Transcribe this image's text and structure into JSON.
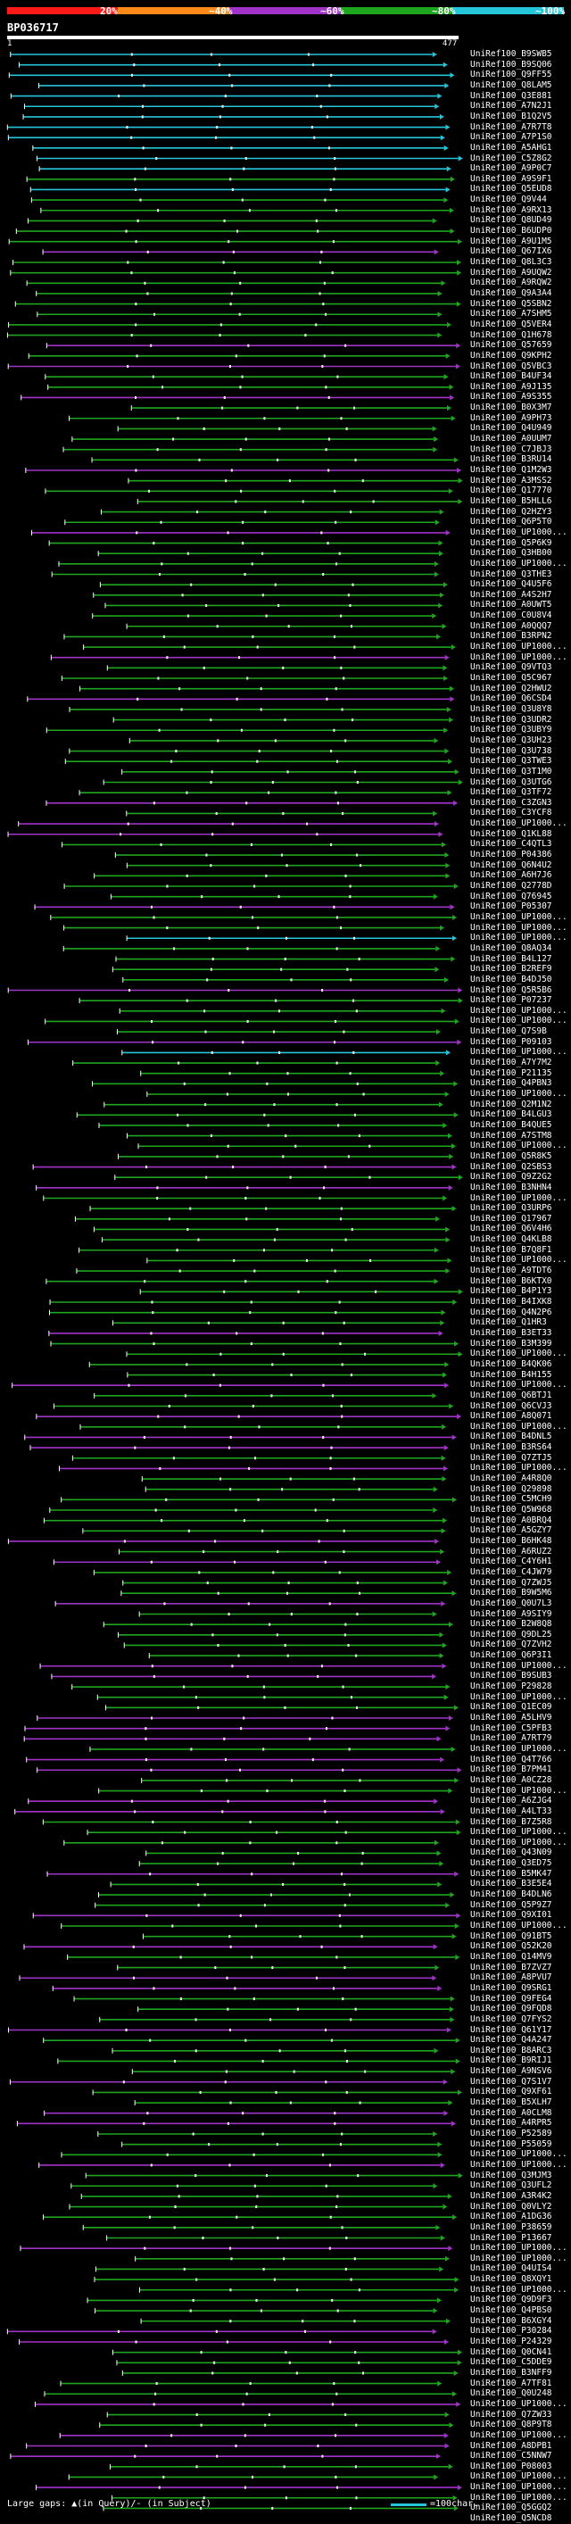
{
  "identity_scale": {
    "labels": [
      "20%",
      "~40%",
      "~60%",
      "~80%",
      "~100%"
    ],
    "colors": [
      "#ff1a1a",
      "#ff8a1a",
      "#a233c8",
      "#1fa61f",
      "#26c6da"
    ]
  },
  "query": {
    "id": "BP036717",
    "start": "1",
    "end": "477"
  },
  "legend": {
    "gaps_label": "Large gaps: ▲(in Query)/- (in Subject)",
    "scale_label": "=100char."
  },
  "hits": [
    "UniRef100_B9SWB5",
    "UniRef100_B9SQ06",
    "UniRef100_Q9FF55",
    "UniRef100_Q8LAM5",
    "UniRef100_Q3E881",
    "UniRef100_A7N2J1",
    "UniRef100_B1Q2V5",
    "UniRef100_A7R7T8",
    "UniRef100_A7P1S0",
    "UniRef100_A5AHG1",
    "UniRef100_C5Z8G2",
    "UniRef100_A9P0C7",
    "UniRef100_A9S9F1",
    "UniRef100_Q5EUD8",
    "UniRef100_Q9V44",
    "UniRef100_A9RX13",
    "UniRef100_Q8UD49",
    "UniRef100_B6UDP0",
    "UniRef100_A9U1M5",
    "UniRef100_Q67IX6",
    "UniRef100_Q8L3C3",
    "UniRef100_A9UQW2",
    "UniRef100_A9RQW2",
    "UniRef100_Q9A3A4",
    "UniRef100_Q5SBN2",
    "UniRef100_A7SHM5",
    "UniRef100_Q5VER4",
    "UniRef100_Q1H678",
    "UniRef100_Q57659",
    "UniRef100_Q9KPH2",
    "UniRef100_Q5VBC3",
    "UniRef100_B4UF34",
    "UniRef100_A9J135",
    "UniRef100_A9S355",
    "UniRef100_B0X3M7",
    "UniRef100_A9PH73",
    "UniRef100_Q4U949",
    "UniRef100_A0UUM7",
    "UniRef100_C7JBJ3",
    "UniRef100_B3RU14",
    "UniRef100_Q1M2W3",
    "UniRef100_A3MSS2",
    "UniRef100_Q17770",
    "UniRef100_B5HLL6",
    "UniRef100_Q2HZY3",
    "UniRef100_Q6P5T0",
    "UniRef100_UP1000...",
    "UniRef100_Q5P6K9",
    "UniRef100_Q3HB00",
    "UniRef100_UP1000...",
    "UniRef100_Q3THE3",
    "UniRef100_Q4U5F6",
    "UniRef100_A4S2H7",
    "UniRef100_A0UWT5",
    "UniRef100_C0U8V4",
    "UniRef100_A0QQQ7",
    "UniRef100_B3RPN2",
    "UniRef100_UP1000...",
    "UniRef100_UP1000...",
    "UniRef100_Q9VTQ3",
    "UniRef100_Q5C967",
    "UniRef100_Q2HWU2",
    "UniRef100_Q6CSD4",
    "UniRef100_Q3U8Y8",
    "UniRef100_Q3UDR2",
    "UniRef100_Q3UBY9",
    "UniRef100_Q3UH23",
    "UniRef100_Q3U738",
    "UniRef100_Q3TWE3",
    "UniRef100_Q3T1M0",
    "UniRef100_Q3UTG6",
    "UniRef100_Q3TF72",
    "UniRef100_C3ZGN3",
    "UniRef100_C3YCF8",
    "UniRef100_UP1000...",
    "UniRef100_Q1KL88",
    "UniRef100_C4QTL3",
    "UniRef100_P04386",
    "UniRef100_Q6N4U2",
    "UniRef100_A6H7J6",
    "UniRef100_Q2778D",
    "UniRef100_Q76945",
    "UniRef100_P05307",
    "UniRef100_UP1000...",
    "UniRef100_UP1000...",
    "UniRef100_UP1000...",
    "UniRef100_Q8AQ34",
    "UniRef100_B4L127",
    "UniRef100_B2REF9",
    "UniRef100_B4DJ50",
    "UniRef100_Q5R5B6",
    "UniRef100_P07237",
    "UniRef100_UP1000...",
    "UniRef100_UP1000...",
    "UniRef100_Q7S9B",
    "UniRef100_P09103",
    "UniRef100_UP1000...",
    "UniRef100_A7Y7M2",
    "UniRef100_P21135",
    "UniRef100_Q4PBN3",
    "UniRef100_UP1000...",
    "UniRef100_Q2M1N2",
    "UniRef100_B4LGU3",
    "UniRef100_B4QUE5",
    "UniRef100_A7STM8",
    "UniRef100_UP1000...",
    "UniRef100_Q5R8K5",
    "UniRef100_Q2SBS3",
    "UniRef100_Q9Z2G2",
    "UniRef100_B3NHN4",
    "UniRef100_UP1000...",
    "UniRef100_Q3URP6",
    "UniRef100_Q17967",
    "UniRef100_Q6V4H6",
    "UniRef100_Q4KLB8",
    "UniRef100_B7Q8F1",
    "UniRef100_UP1000...",
    "UniRef100_A9TDT6",
    "UniRef100_B6KTX0",
    "UniRef100_B4P1Y3",
    "UniRef100_B4IXK8",
    "UniRef100_Q4N2P6",
    "UniRef100_Q1HR3",
    "UniRef100_B3ET33",
    "UniRef100_B3M399",
    "UniRef100_UP1000...",
    "UniRef100_B4QK06",
    "UniRef100_B4H155",
    "UniRef100_UP1000...",
    "UniRef100_Q6BTJ1",
    "UniRef100_Q6CVJ3",
    "UniRef100_A8Q071",
    "UniRef100_UP1000...",
    "UniRef100_B4DNL5",
    "UniRef100_B3RS64",
    "UniRef100_Q7ZTJ5",
    "UniRef100_UP1000...",
    "UniRef100_A4R8Q0",
    "UniRef100_Q29898",
    "UniRef100_C5MCH9",
    "UniRef100_Q5W968",
    "UniRef100_A0BRQ4",
    "UniRef100_A5GZY7",
    "UniRef100_B6HK48",
    "UniRef100_A6RUZ2",
    "UniRef100_C4Y6H1",
    "UniRef100_C4JW79",
    "UniRef100_Q7ZWJ5",
    "UniRef100_B9W5M6",
    "UniRef100_Q0U7L3",
    "UniRef100_A9SIY9",
    "UniRef100_B2W8Q8",
    "UniRef100_Q9DL25",
    "UniRef100_Q7ZVH2",
    "UniRef100_Q6P3I1",
    "UniRef100_UP1000...",
    "UniRef100_B9SUB3",
    "UniRef100_P29828",
    "UniRef100_UP1000...",
    "UniRef100_Q1EC09",
    "UniRef100_A5LHV9",
    "UniRef100_C5PFB3",
    "UniRef100_A7RT79",
    "UniRef100_UP1000...",
    "UniRef100_Q4T766",
    "UniRef100_B7PM41",
    "UniRef100_A0CZ28",
    "UniRef100_UP1000...",
    "UniRef100_A6ZJG4",
    "UniRef100_A4LT33",
    "UniRef100_B7Z5R8",
    "UniRef100_UP1000...",
    "UniRef100_UP1000...",
    "UniRef100_Q43N09",
    "UniRef100_Q3ED75",
    "UniRef100_B5MK47",
    "UniRef100_B3E5E4",
    "UniRef100_B4DLN6",
    "UniRef100_Q5P9Z7",
    "UniRef100_Q9XI01",
    "UniRef100_UP1000...",
    "UniRef100_Q91BT5",
    "UniRef100_Q52K20",
    "UniRef100_Q14MV9",
    "UniRef100_B7ZVZ7",
    "UniRef100_A8PVU7",
    "UniRef100_Q9SRG1",
    "UniRef100_Q9FEG4",
    "UniRef100_Q9FQD8",
    "UniRef100_Q7FYS2",
    "UniRef100_Q61Y17",
    "UniRef100_Q4A247",
    "UniRef100_B8ARC3",
    "UniRef100_B9RIJ1",
    "UniRef100_A9NSV6",
    "UniRef100_Q7S1V7",
    "UniRef100_Q9XF61",
    "UniRef100_B5XLH7",
    "UniRef100_A0CLM8",
    "UniRef100_A4RPR5",
    "UniRef100_P52589",
    "UniRef100_P55059",
    "UniRef100_UP1000...",
    "UniRef100_UP1000...",
    "UniRef100_Q3MJM3",
    "UniRef100_Q3UFL2",
    "UniRef100_A3R4K2",
    "UniRef100_Q0VLY2",
    "UniRef100_A1DG36",
    "UniRef100_P38659",
    "UniRef100_P13667",
    "UniRef100_UP1000...",
    "UniRef100_UP1000...",
    "UniRef100_Q4UIS4",
    "UniRef100_Q8XQY1",
    "UniRef100_UP1000...",
    "UniRef100_Q9D9F3",
    "UniRef100_Q4PBS0",
    "UniRef100_B6XGY4",
    "UniRef100_P30284",
    "UniRef100_P24329",
    "UniRef100_Q0CN41",
    "UniRef100_C5DDE9",
    "UniRef100_B3NFF9",
    "UniRef100_A7TF81",
    "UniRef100_Q0U248",
    "UniRef100_UP1000...",
    "UniRef100_Q7ZW33",
    "UniRef100_Q8P9T8",
    "UniRef100_UP1000...",
    "UniRef100_A8DPB1",
    "UniRef100_C5NNW7",
    "UniRef100_P08003",
    "UniRef100_UP1000...",
    "UniRef100_UP1000...",
    "UniRef100_UP1000...",
    "UniRef100_Q5GGQ2",
    "UniRef100_Q5NCD8"
  ]
}
